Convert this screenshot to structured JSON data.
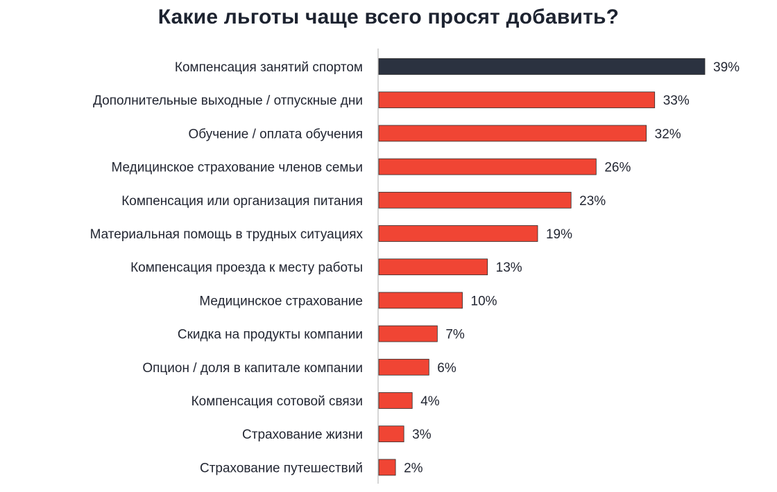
{
  "chart_data": {
    "type": "bar",
    "orientation": "horizontal",
    "title": "Какие льготы чаще всего просят добавить?",
    "categories": [
      "Компенсация занятий спортом",
      "Дополнительные выходные / отпускные дни",
      "Обучение / оплата обучения",
      "Медицинское страхование членов семьи",
      "Компенсация или организация питания",
      "Материальная помощь в трудных ситуациях",
      "Компенсация проезда к месту работы",
      "Медицинское страхование",
      "Скидка на продукты компании",
      "Опцион / доля в капитале компании",
      "Компенсация сотовой связи",
      "Страхование жизни",
      "Страхование путешествий"
    ],
    "values": [
      39,
      33,
      32,
      26,
      23,
      19,
      13,
      10,
      7,
      6,
      4,
      3,
      2
    ],
    "value_labels": [
      "39%",
      "33%",
      "32%",
      "26%",
      "23%",
      "19%",
      "13%",
      "10%",
      "7%",
      "6%",
      "4%",
      "3%",
      "2%"
    ],
    "unit": "%",
    "xlim": [
      0,
      39
    ],
    "grid": false,
    "legend": "none",
    "colors": {
      "highlight": "#2b3240",
      "bar": "#f04534",
      "axis": "#c8c8c8",
      "text": "#222632"
    },
    "highlight_index": 0
  }
}
